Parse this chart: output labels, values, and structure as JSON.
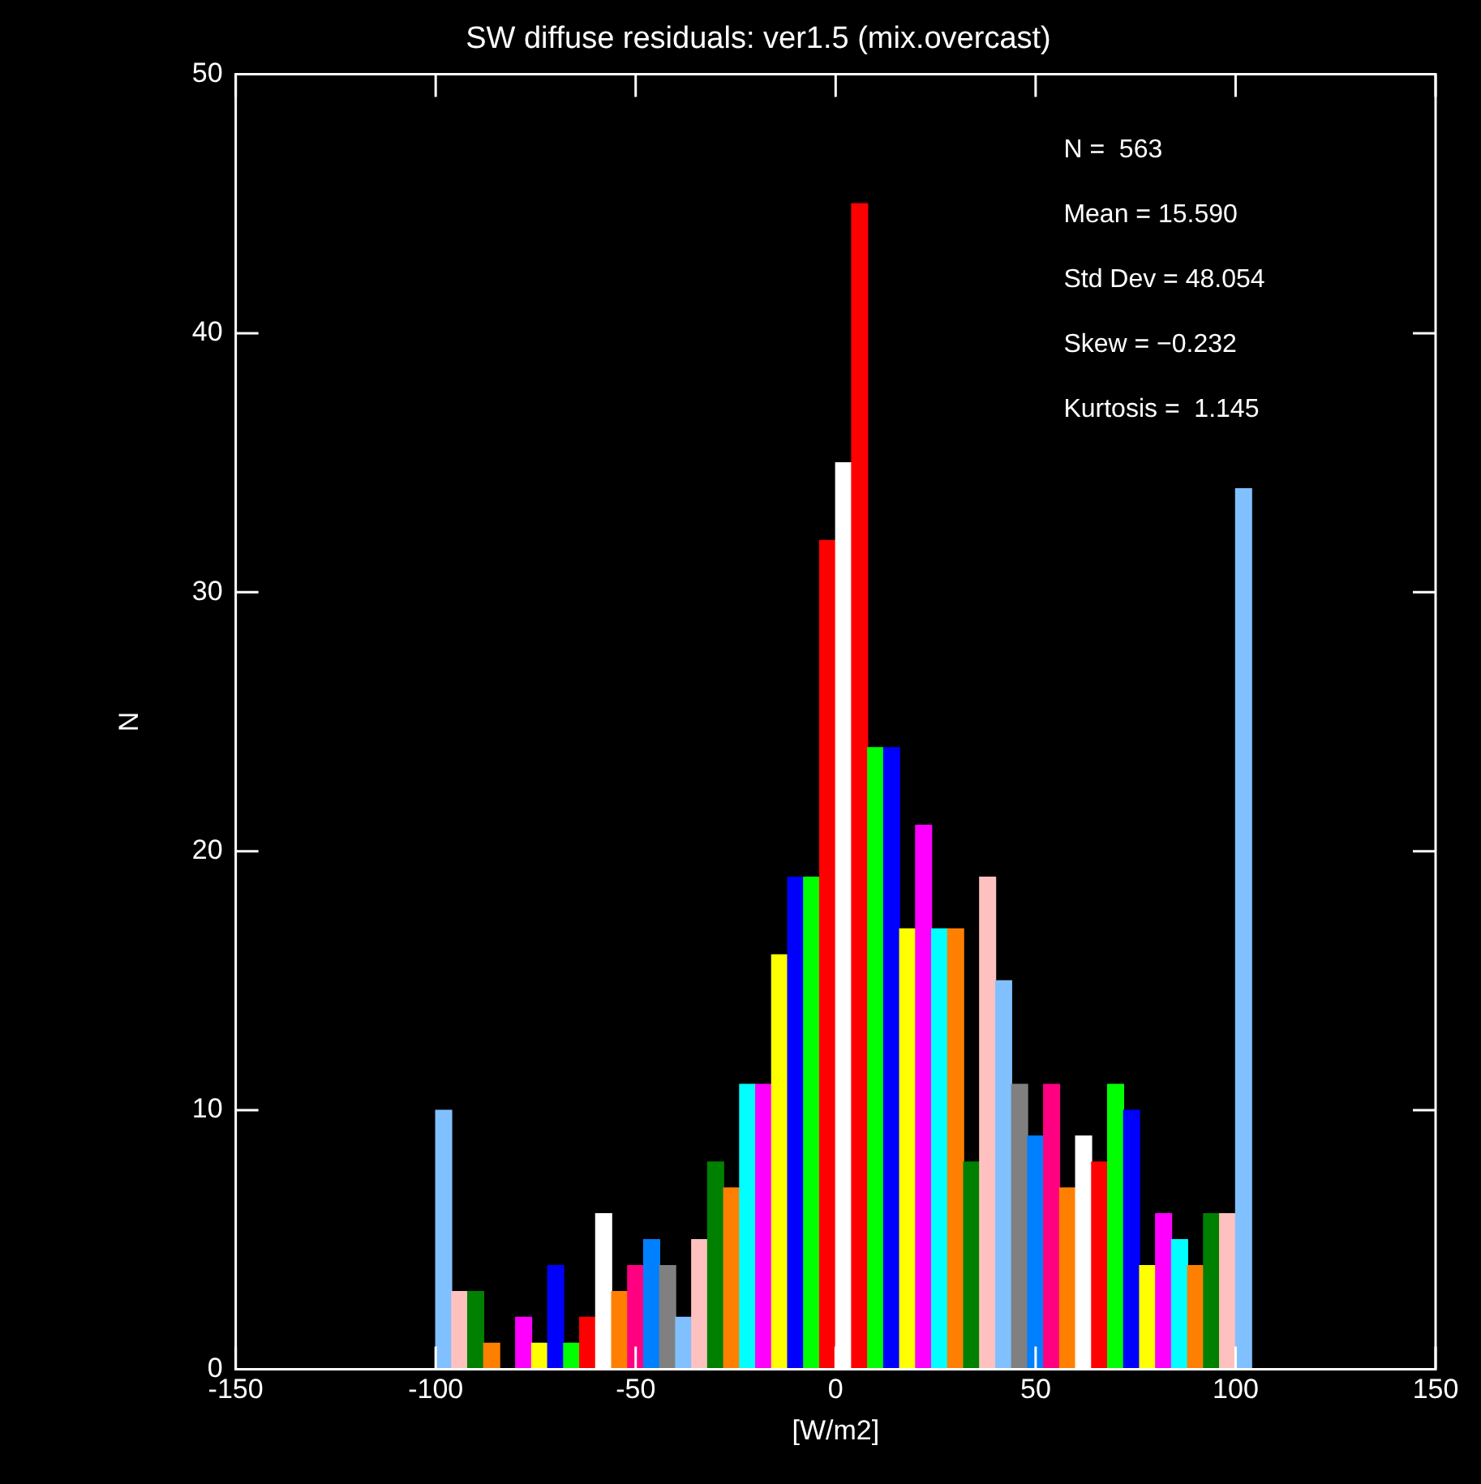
{
  "chart_data": {
    "type": "histogram",
    "title": "SW diffuse residuals: ver1.5 (mix.overcast)",
    "xlabel": "[W/m2]",
    "ylabel": "N",
    "bins": [
      -100,
      -96,
      -92,
      -88,
      -84,
      -80,
      -76,
      -72,
      -68,
      -64,
      -60,
      -56,
      -52,
      -48,
      -44,
      -40,
      -36,
      -32,
      -28,
      -24,
      -20,
      -16,
      -12,
      -8,
      -4,
      0,
      4,
      8,
      12,
      16,
      20,
      24,
      28,
      32,
      36,
      40,
      44,
      48,
      52,
      56,
      60,
      64,
      68,
      72,
      76,
      80,
      84,
      88,
      92,
      96,
      100,
      104
    ],
    "values": [
      10,
      3,
      3,
      1,
      0,
      2,
      1,
      4,
      1,
      2,
      6,
      3,
      4,
      5,
      4,
      2,
      5,
      8,
      7,
      11,
      11,
      16,
      19,
      19,
      32,
      35,
      45,
      24,
      24,
      17,
      21,
      17,
      17,
      8,
      19,
      15,
      11,
      9,
      11,
      7,
      9,
      8,
      11,
      10,
      4,
      6,
      5,
      4,
      6,
      6,
      34
    ],
    "colors": [
      "#80c0ff",
      "#ffc0c0",
      "#008000",
      "#ff8000",
      "#00ffff",
      "#ff00ff",
      "#ffff00",
      "#0000ff",
      "#00ff00",
      "#ff0000",
      "#ffffff",
      "#ff8000",
      "#ff0080",
      "#0080ff",
      "#808080",
      "#80c0ff",
      "#ffc0c0",
      "#008000",
      "#ff8000",
      "#00ffff",
      "#ff00ff",
      "#ffff00",
      "#0000ff",
      "#00ff00",
      "#ff0000",
      "#ffffff",
      "#ff0000",
      "#00ff00",
      "#0000ff",
      "#ffff00",
      "#ff00ff",
      "#00ffff",
      "#ff8000",
      "#008000",
      "#ffc0c0",
      "#80c0ff",
      "#808080",
      "#0080ff",
      "#ff0080",
      "#ff8000",
      "#ffffff",
      "#ff0000",
      "#00ff00",
      "#0000ff",
      "#ffff00",
      "#ff00ff",
      "#00ffff",
      "#ff8000",
      "#008000",
      "#ffc0c0",
      "#80c0ff"
    ],
    "xlim": [
      -150,
      150
    ],
    "xticks": [
      -150,
      -100,
      -50,
      0,
      50,
      100,
      150
    ],
    "ylim": [
      0,
      50
    ],
    "yticks": [
      0,
      10,
      20,
      30,
      40,
      50
    ],
    "annotations": [
      "N =  563",
      "Mean = 15.590",
      "Std Dev = 48.054",
      "Skew = −0.232",
      "Kurtosis =  1.145"
    ],
    "grid": false,
    "legend": false
  }
}
